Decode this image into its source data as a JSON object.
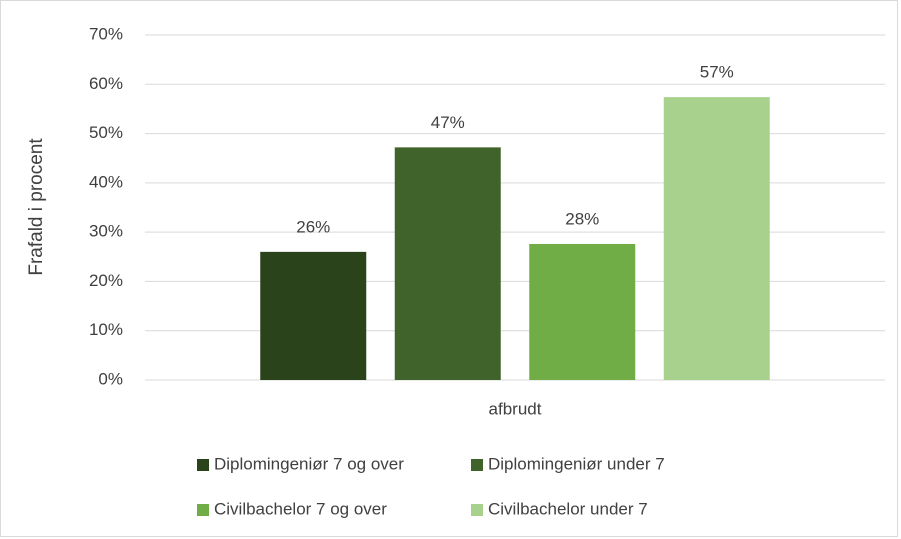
{
  "chart_data": {
    "type": "bar",
    "y_label": "Frafald i procent",
    "categories": [
      "afbrudt"
    ],
    "series": [
      {
        "name": "Diplomingeniør 7 og over",
        "color": "#2b431b",
        "values": [
          26
        ],
        "value_labels": [
          "26%"
        ]
      },
      {
        "name": "Diplomingeniør under 7",
        "color": "#3f632a",
        "values": [
          47.2
        ],
        "value_labels": [
          "47%"
        ]
      },
      {
        "name": "Civilbachelor 7 og over",
        "color": "#70ad47",
        "values": [
          27.6
        ],
        "value_labels": [
          "28%"
        ]
      },
      {
        "name": "Civilbachelor under 7",
        "color": "#a9d18e",
        "values": [
          57.4
        ],
        "value_labels": [
          "57%"
        ]
      }
    ],
    "ylim": [
      0,
      70
    ],
    "yticks": [
      {
        "value": 0,
        "label": "0%"
      },
      {
        "value": 10,
        "label": "10%"
      },
      {
        "value": 20,
        "label": "20%"
      },
      {
        "value": 30,
        "label": "30%"
      },
      {
        "value": 40,
        "label": "40%"
      },
      {
        "value": 50,
        "label": "50%"
      },
      {
        "value": 60,
        "label": "60%"
      },
      {
        "value": 70,
        "label": "70%"
      }
    ],
    "grid": true,
    "legend": "bottom"
  }
}
